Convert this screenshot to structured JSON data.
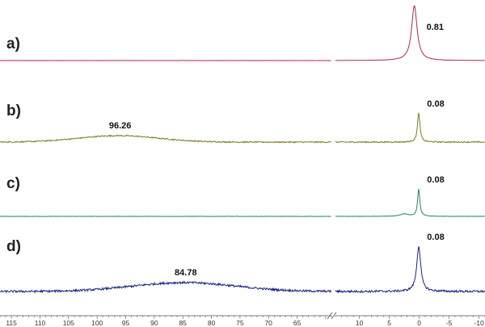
{
  "chart_data": {
    "type": "line",
    "title": "",
    "xlabel": "",
    "ylabel": "",
    "x_axis": {
      "reversed": true,
      "broken": true,
      "segments": [
        {
          "xlim": [
            117,
            59
          ],
          "ticks": [
            115,
            110,
            105,
            100,
            95,
            90,
            85,
            80,
            75,
            70,
            65
          ]
        },
        {
          "xlim": [
            14,
            -11
          ],
          "ticks": [
            10,
            5,
            0,
            -5,
            -10
          ]
        }
      ],
      "tick_labels": [
        "115",
        "110",
        "105",
        "100",
        "95",
        "90",
        "85",
        "80",
        "75",
        "70",
        "65",
        "10",
        "5",
        "0",
        "-5",
        "-10"
      ]
    },
    "grid": false,
    "legend": "none",
    "series": [
      {
        "label": "a)",
        "color": "#b0274f",
        "noise": 0.15,
        "peaks": [
          {
            "x": 0.81,
            "label": "0.81",
            "width": 0.55,
            "height": 68
          }
        ],
        "broad": []
      },
      {
        "label": "b)",
        "color": "#7e7c1c",
        "noise": 0.7,
        "peaks": [
          {
            "x": 0.08,
            "label": "0.08",
            "width": 0.25,
            "height": 36
          }
        ],
        "broad": [
          {
            "x": 96.26,
            "label": "96.26",
            "width": 7,
            "height": 8
          }
        ]
      },
      {
        "label": "c)",
        "color": "#1d8a5a",
        "noise": 0.2,
        "peaks": [
          {
            "x": 0.08,
            "label": "0.08",
            "width": 0.22,
            "height": 34
          },
          {
            "x": 2.5,
            "label": "",
            "width": 0.8,
            "height": 3
          }
        ],
        "broad": []
      },
      {
        "label": "d)",
        "color": "#1a237e",
        "noise": 1.3,
        "peaks": [
          {
            "x": 0.08,
            "label": "0.08",
            "width": 0.4,
            "height": 56
          }
        ],
        "broad": [
          {
            "x": 84.78,
            "label": "84.78",
            "width": 9,
            "height": 11
          }
        ]
      }
    ]
  }
}
